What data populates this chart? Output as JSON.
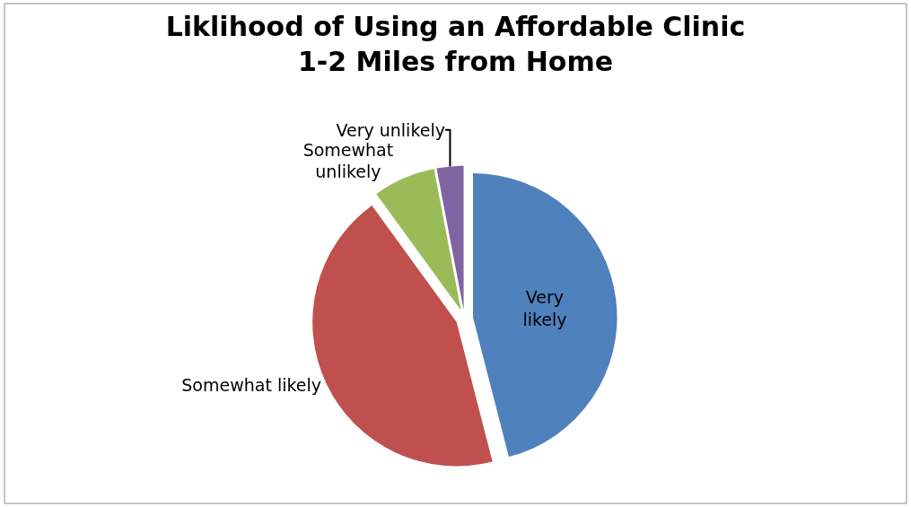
{
  "chart_data": {
    "type": "pie",
    "title": "Liklihood of Using an Affordable Clinic\n1-2 Miles from Home",
    "categories": [
      "Very likely",
      "Somewhat likely",
      "Somewhat unlikely",
      "Very unlikely"
    ],
    "values": [
      46,
      44,
      7,
      3
    ],
    "colors": [
      "#4f81bd",
      "#c0504d",
      "#9bbb59",
      "#8064a2"
    ],
    "legend": false
  }
}
